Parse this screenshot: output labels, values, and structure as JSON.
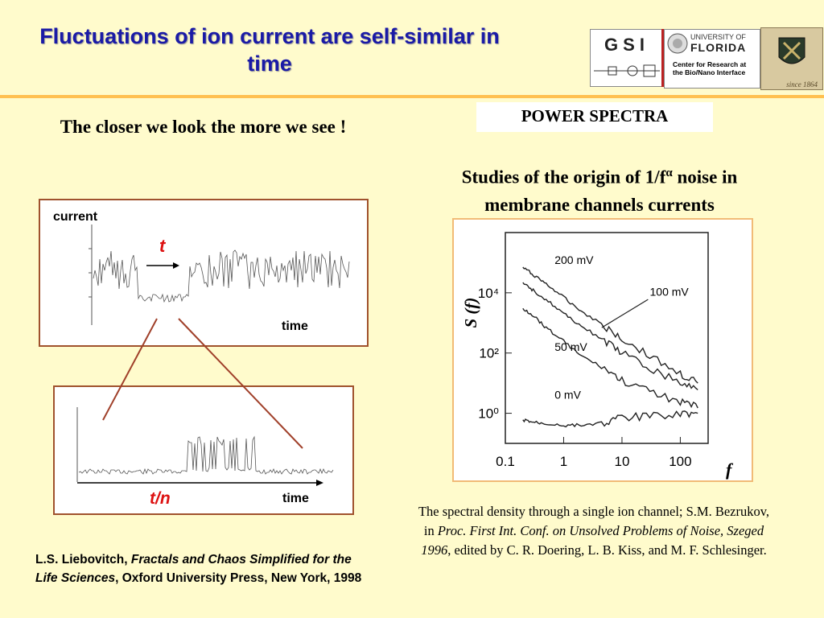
{
  "title": "Fluctuations of ion current are self-similar in time",
  "logos": {
    "gsi": "GSI",
    "uf_university": "UNIVERSITY OF",
    "uf_name": "FLORIDA",
    "uf_center_1": "Center for Research at",
    "uf_center_2": "the Bio/Nano Interface",
    "seal_text": "since 1864"
  },
  "left_heading": "The closer we look the more we see !",
  "power_label": "POWER SPECTRA",
  "right_heading_1": "Studies of the origin of 1/f",
  "right_heading_sup": "α",
  "right_heading_2": " noise in membrane channels currents",
  "top_panel": {
    "ylabel": "current",
    "xlabel": "time",
    "arrow_label": "t"
  },
  "bottom_panel": {
    "xlabel": "time",
    "arrow_label": "t/n"
  },
  "chart_data": {
    "type": "line",
    "ylabel": "S (f)",
    "xlabel": "f",
    "x_scale": "log",
    "y_scale": "log",
    "x_ticks": [
      "0.1",
      "1",
      "10",
      "100"
    ],
    "y_ticks": [
      "10⁰",
      "10²",
      "10⁴"
    ],
    "xlim": [
      0.1,
      300
    ],
    "ylim": [
      0.1,
      1000000
    ],
    "series": [
      {
        "name": "200 mV",
        "x": [
          0.2,
          0.3,
          0.5,
          1,
          2,
          5,
          10,
          30,
          100,
          200
        ],
        "y": [
          70000,
          40000,
          20000,
          7000,
          2500,
          800,
          300,
          80,
          20,
          10
        ]
      },
      {
        "name": "100 mV",
        "x": [
          0.2,
          0.3,
          0.5,
          1,
          2,
          5,
          10,
          30,
          100,
          200
        ],
        "y": [
          20000,
          12000,
          6000,
          2000,
          800,
          250,
          100,
          30,
          10,
          6
        ]
      },
      {
        "name": "50 mV",
        "x": [
          0.2,
          0.3,
          0.5,
          1,
          2,
          5,
          10,
          30,
          100,
          200
        ],
        "y": [
          3000,
          1800,
          700,
          250,
          80,
          30,
          12,
          5,
          2.5,
          1.5
        ]
      },
      {
        "name": "0 mV",
        "x": [
          0.2,
          0.3,
          0.5,
          1,
          2,
          5,
          10,
          30,
          100,
          200
        ],
        "y": [
          0.6,
          0.5,
          0.45,
          0.4,
          0.4,
          0.5,
          0.7,
          0.8,
          1,
          1
        ]
      }
    ]
  },
  "caption_1": "The spectral density through a single ion channel; S.M. Bezrukov, in ",
  "caption_italic": "Proc. First Int. Conf. on Unsolved Problems of Noise, Szeged 1996",
  "caption_2": ", edited by C. R. Doering, L. B. Kiss, and M. F. Schlesinger.",
  "reference_1": "L.S. Liebovitch, ",
  "reference_italic": "Fractals and Chaos Simplified for the Life Sciences",
  "reference_2": ", Oxford University Press, New York, 1998"
}
